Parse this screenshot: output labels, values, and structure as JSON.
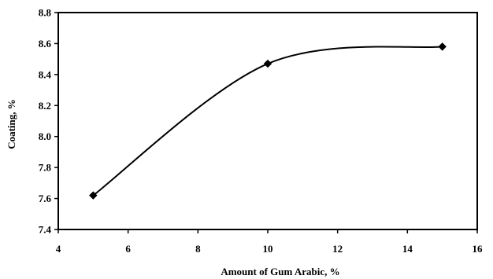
{
  "chart_data": {
    "type": "line",
    "title": "",
    "xlabel": "Amount of Gum Arabic, %",
    "ylabel": "Coating, %",
    "xlim": [
      4,
      16
    ],
    "ylim": [
      7.4,
      8.8
    ],
    "xticks": [
      "4",
      "6",
      "8",
      "10",
      "12",
      "14",
      "16"
    ],
    "yticks": [
      "7.4",
      "7.6",
      "7.8",
      "8.0",
      "8.2",
      "8.4",
      "8.6",
      "8.8"
    ],
    "grid": false,
    "smooth": true,
    "marker": "diamond",
    "series": [
      {
        "x": [
          5,
          10,
          15
        ],
        "y": [
          7.62,
          8.47,
          8.58
        ],
        "color": "#000000"
      }
    ]
  }
}
